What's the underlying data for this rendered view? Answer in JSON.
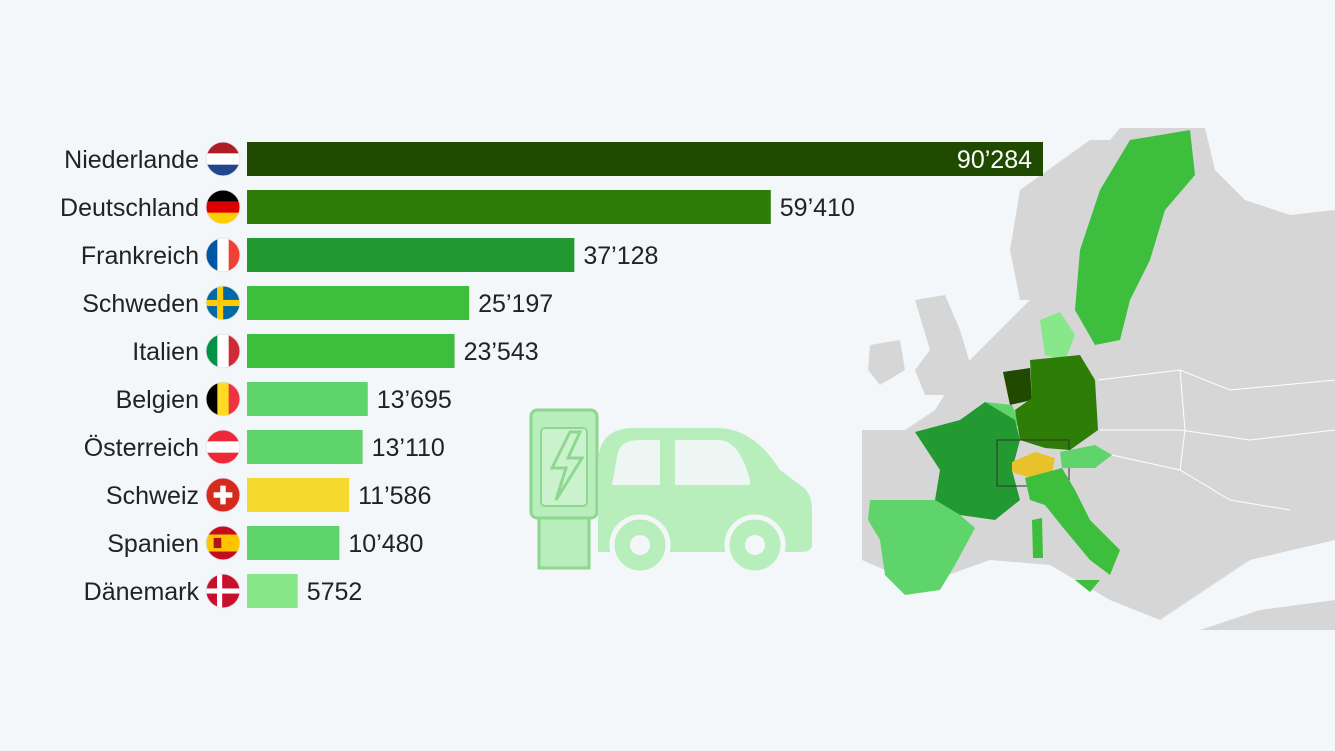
{
  "chart_data": {
    "type": "bar",
    "orientation": "horizontal",
    "categories": [
      "Niederlande",
      "Deutschland",
      "Frankreich",
      "Schweden",
      "Italien",
      "Belgien",
      "Österreich",
      "Schweiz",
      "Spanien",
      "Dänemark"
    ],
    "values": [
      90284,
      59410,
      37128,
      25197,
      23543,
      13695,
      13110,
      11586,
      10480,
      5752
    ],
    "value_labels": [
      "90’284",
      "59’410",
      "37’128",
      "25’197",
      "23’543",
      "13’695",
      "13’110",
      "11’586",
      "10’480",
      "5752"
    ],
    "bar_colors": [
      "#1f4a00",
      "#2e7d07",
      "#239a31",
      "#3dbe3d",
      "#3dbe3d",
      "#5fd46a",
      "#5fd46a",
      "#f5d92e",
      "#5fd46a",
      "#86e889"
    ],
    "flag_icons": [
      "flag-netherlands-icon",
      "flag-germany-icon",
      "flag-france-icon",
      "flag-sweden-icon",
      "flag-italy-icon",
      "flag-belgium-icon",
      "flag-austria-icon",
      "flag-switzerland-icon",
      "flag-spain-icon",
      "flag-denmark-icon"
    ],
    "title": "",
    "xlabel": "",
    "ylabel": "",
    "xlim": [
      0,
      90284
    ],
    "grid": false,
    "legend": "none"
  },
  "decorations": {
    "illustration": "ev-charging-station-car-icon",
    "map": "europe-map-icon"
  }
}
